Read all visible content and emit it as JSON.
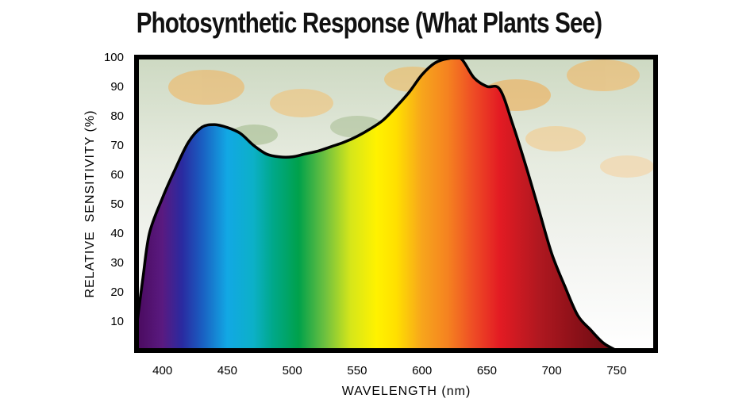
{
  "chart_data": {
    "type": "area",
    "title": "Photosynthetic Response  (What Plants See)",
    "xlabel": "WAVELENGTH (nm)",
    "ylabel": "RELATIVE  SENSITIVITY (%)",
    "xlim": [
      380,
      780
    ],
    "ylim": [
      0,
      100
    ],
    "xticks": [
      400,
      450,
      500,
      550,
      600,
      650,
      700,
      750
    ],
    "yticks": [
      10,
      20,
      30,
      40,
      50,
      60,
      70,
      80,
      90,
      100
    ],
    "grid": false,
    "series": [
      {
        "x": [
          380,
          385,
          390,
          400,
          410,
          420,
          430,
          440,
          450,
          460,
          470,
          480,
          490,
          500,
          510,
          520,
          530,
          540,
          550,
          560,
          570,
          580,
          590,
          600,
          610,
          620,
          630,
          640,
          650,
          660,
          670,
          680,
          690,
          700,
          710,
          720,
          730,
          740,
          750
        ],
        "y": [
          8,
          25,
          40,
          52,
          62,
          71,
          76,
          77,
          76,
          74,
          70,
          67,
          66,
          66,
          67,
          68,
          69.5,
          71,
          73,
          75.5,
          78.5,
          83,
          88,
          94,
          98,
          99.5,
          99.5,
          93,
          90,
          89,
          77,
          63,
          48,
          33,
          22,
          12,
          7,
          2.5,
          0
        ]
      }
    ],
    "colors": {
      "frame": "#000000",
      "curve": "#000000",
      "spectrum": [
        {
          "wavelength": 380,
          "color": "#4a0a5e"
        },
        {
          "wavelength": 400,
          "color": "#5a1a80"
        },
        {
          "wavelength": 415,
          "color": "#2a2aa0"
        },
        {
          "wavelength": 430,
          "color": "#1a5cc0"
        },
        {
          "wavelength": 450,
          "color": "#12a8e4"
        },
        {
          "wavelength": 470,
          "color": "#0cb0c8"
        },
        {
          "wavelength": 485,
          "color": "#00a88a"
        },
        {
          "wavelength": 505,
          "color": "#00a14b"
        },
        {
          "wavelength": 525,
          "color": "#6cc040"
        },
        {
          "wavelength": 545,
          "color": "#d6e61a"
        },
        {
          "wavelength": 565,
          "color": "#fff200"
        },
        {
          "wavelength": 580,
          "color": "#ffe000"
        },
        {
          "wavelength": 600,
          "color": "#f7a51c"
        },
        {
          "wavelength": 620,
          "color": "#f58220"
        },
        {
          "wavelength": 640,
          "color": "#ee4b25"
        },
        {
          "wavelength": 660,
          "color": "#e31b23"
        },
        {
          "wavelength": 690,
          "color": "#b01820"
        },
        {
          "wavelength": 720,
          "color": "#8a1018"
        },
        {
          "wavelength": 760,
          "color": "#5a0a10"
        }
      ]
    }
  }
}
